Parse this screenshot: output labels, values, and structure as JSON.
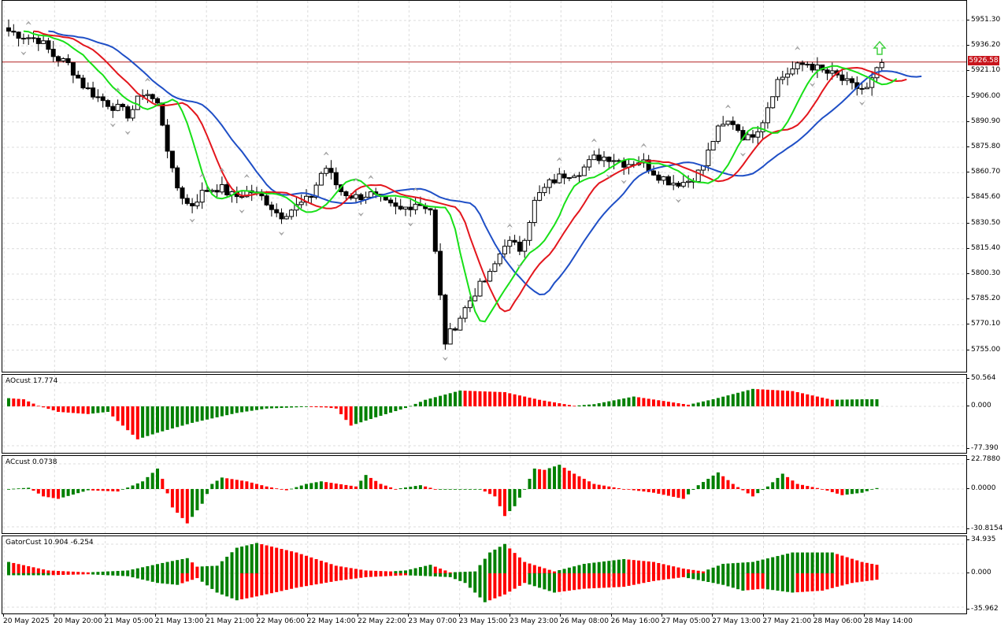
{
  "colors": {
    "bull": "#008000",
    "bear": "#ff0000",
    "jaw": "#1f4fc6",
    "teeth": "#e3161d",
    "lips": "#18e018",
    "bid_line": "#b22222",
    "grid": "#dcdcdc",
    "arrow_up": "#42d142",
    "fractal": "#b4b4b4"
  },
  "main_chart": {
    "price_tag": "5926.58",
    "price_axis_labels": [
      "5951.30",
      "5936.20",
      "5921.10",
      "5906.00",
      "5890.90",
      "5875.80",
      "5860.70",
      "5845.60",
      "5830.50",
      "5815.40",
      "5800.30",
      "5785.20",
      "5770.10",
      "5755.00"
    ],
    "icons": [
      "up-arrow-icon",
      "fractal-up-icon",
      "fractal-down-icon"
    ]
  },
  "ao_pane": {
    "label": "AOcust 17.774",
    "axis_labels": [
      "50.564",
      "0.000",
      "-77.390"
    ]
  },
  "ac_pane": {
    "label": "ACcust 0.0738",
    "axis_labels": [
      "22.7880",
      "0.0000",
      "-30.8154"
    ]
  },
  "gator_pane": {
    "label": "GatorCust 10.904 -6.254",
    "axis_labels": [
      "34.935",
      "0.000",
      "-35.962"
    ]
  },
  "time_axis": [
    "20 May 2025",
    "20 May 20:00",
    "21 May 05:00",
    "21 May 13:00",
    "21 May 21:00",
    "22 May 06:00",
    "22 May 14:00",
    "22 May 22:00",
    "23 May 07:00",
    "23 May 15:00",
    "23 May 23:00",
    "26 May 08:00",
    "26 May 16:00",
    "27 May 05:00",
    "27 May 13:00",
    "27 May 21:00",
    "28 May 06:00",
    "28 May 14:00"
  ],
  "chart_data": [
    {
      "type": "candlestick",
      "title": "",
      "y_axis_range": [
        5748,
        5960
      ],
      "series_lines": [
        "jaw",
        "teeth",
        "lips"
      ],
      "close_path": [
        5945,
        5942,
        5940,
        5930,
        5925,
        5912,
        5905,
        5900,
        5895,
        5910,
        5900,
        5855,
        5840,
        5850,
        5852,
        5846,
        5850,
        5845,
        5835,
        5840,
        5845,
        5865,
        5850,
        5846,
        5848,
        5842,
        5838,
        5843,
        5840,
        5760,
        5775,
        5790,
        5800,
        5820,
        5815,
        5845,
        5855,
        5860,
        5862,
        5870,
        5870,
        5866,
        5868,
        5860,
        5855,
        5855,
        5862,
        5885,
        5892,
        5880,
        5890,
        5915,
        5922,
        5926,
        5921,
        5918,
        5912,
        5910,
        5926
      ]
    },
    {
      "type": "bar",
      "title": "AOcust 17.774",
      "ylim": [
        -77.39,
        50.564
      ],
      "anchors": [
        [
          0,
          15
        ],
        [
          3,
          13
        ],
        [
          6,
          1
        ],
        [
          10,
          -10
        ],
        [
          16,
          -14
        ],
        [
          20,
          -10
        ],
        [
          26,
          -60
        ],
        [
          30,
          -48
        ],
        [
          37,
          -30
        ],
        [
          46,
          -12
        ],
        [
          52,
          -4
        ],
        [
          60,
          -1
        ],
        [
          64,
          -2
        ],
        [
          66,
          -4
        ],
        [
          69,
          -35
        ],
        [
          74,
          -20
        ],
        [
          80,
          -3
        ],
        [
          84,
          12
        ],
        [
          91,
          29
        ],
        [
          100,
          26
        ],
        [
          107,
          12
        ],
        [
          114,
          1
        ],
        [
          118,
          4
        ],
        [
          126,
          18
        ],
        [
          137,
          3
        ],
        [
          142,
          13
        ],
        [
          150,
          32
        ],
        [
          158,
          28
        ],
        [
          166,
          12
        ],
        [
          172,
          13
        ]
      ]
    },
    {
      "type": "bar",
      "title": "ACcust 0.0738",
      "ylim": [
        -30.8154,
        22.788
      ],
      "anchors": [
        [
          0,
          0
        ],
        [
          4,
          1
        ],
        [
          7,
          -6
        ],
        [
          10,
          -8
        ],
        [
          16,
          -1
        ],
        [
          22,
          -2
        ],
        [
          27,
          6
        ],
        [
          30,
          16
        ],
        [
          31,
          8
        ],
        [
          33,
          -15
        ],
        [
          36,
          -28
        ],
        [
          39,
          -12
        ],
        [
          41,
          4
        ],
        [
          43,
          9
        ],
        [
          48,
          6
        ],
        [
          52,
          2
        ],
        [
          56,
          -1
        ],
        [
          60,
          4
        ],
        [
          63,
          6
        ],
        [
          70,
          2
        ],
        [
          72,
          11
        ],
        [
          75,
          4
        ],
        [
          78,
          0
        ],
        [
          83,
          3
        ],
        [
          86,
          0
        ],
        [
          90,
          0
        ],
        [
          95,
          0
        ],
        [
          98,
          -6
        ],
        [
          100,
          -22
        ],
        [
          102,
          -14
        ],
        [
          104,
          0
        ],
        [
          106,
          16
        ],
        [
          108,
          15
        ],
        [
          111,
          19
        ],
        [
          114,
          12
        ],
        [
          118,
          4
        ],
        [
          124,
          0
        ],
        [
          130,
          -3
        ],
        [
          136,
          -8
        ],
        [
          139,
          3
        ],
        [
          143,
          13
        ],
        [
          146,
          4
        ],
        [
          150,
          -6
        ],
        [
          153,
          2
        ],
        [
          156,
          12
        ],
        [
          159,
          4
        ],
        [
          164,
          0
        ],
        [
          168,
          -5
        ],
        [
          172,
          -3
        ],
        [
          176,
          2
        ]
      ]
    },
    {
      "type": "bar",
      "title": "GatorCust 10.904 -6.254",
      "ylim": [
        -35.962,
        34.935
      ],
      "upper_anchors": [
        [
          0,
          12
        ],
        [
          8,
          3
        ],
        [
          16,
          1
        ],
        [
          24,
          3
        ],
        [
          32,
          12
        ],
        [
          36,
          16
        ],
        [
          38,
          7
        ],
        [
          42,
          8
        ],
        [
          46,
          27
        ],
        [
          50,
          32
        ],
        [
          58,
          22
        ],
        [
          66,
          8
        ],
        [
          72,
          3
        ],
        [
          77,
          2
        ],
        [
          80,
          3
        ],
        [
          85,
          9
        ],
        [
          89,
          1
        ],
        [
          94,
          2
        ],
        [
          97,
          22
        ],
        [
          100,
          31
        ],
        [
          104,
          12
        ],
        [
          110,
          2
        ],
        [
          116,
          10
        ],
        [
          124,
          15
        ],
        [
          130,
          12
        ],
        [
          136,
          5
        ],
        [
          140,
          2
        ],
        [
          144,
          10
        ],
        [
          150,
          12
        ],
        [
          158,
          22
        ],
        [
          166,
          22
        ],
        [
          172,
          12
        ],
        [
          176,
          8
        ]
      ],
      "lower_anchors": [
        [
          0,
          -2
        ],
        [
          8,
          -2
        ],
        [
          16,
          -1
        ],
        [
          24,
          -3
        ],
        [
          30,
          -10
        ],
        [
          34,
          -12
        ],
        [
          38,
          -5
        ],
        [
          42,
          -20
        ],
        [
          46,
          -28
        ],
        [
          50,
          -24
        ],
        [
          58,
          -15
        ],
        [
          66,
          -8
        ],
        [
          72,
          -4
        ],
        [
          80,
          -2
        ],
        [
          85,
          -3
        ],
        [
          89,
          -4
        ],
        [
          92,
          -10
        ],
        [
          96,
          -30
        ],
        [
          100,
          -22
        ],
        [
          104,
          -10
        ],
        [
          110,
          -20
        ],
        [
          116,
          -16
        ],
        [
          124,
          -14
        ],
        [
          130,
          -8
        ],
        [
          136,
          -4
        ],
        [
          140,
          -8
        ],
        [
          144,
          -12
        ],
        [
          148,
          -18
        ],
        [
          152,
          -16
        ],
        [
          158,
          -20
        ],
        [
          164,
          -18
        ],
        [
          170,
          -10
        ],
        [
          176,
          -6
        ]
      ]
    }
  ]
}
